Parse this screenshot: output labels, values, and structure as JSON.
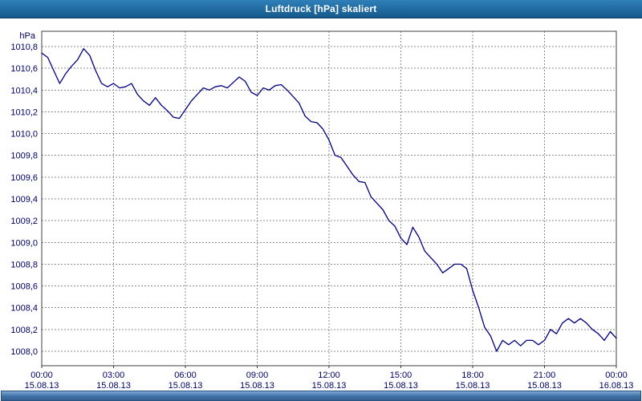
{
  "window": {
    "title": "Luftdruck [hPa] skaliert"
  },
  "chart_data": {
    "type": "line",
    "title": "Luftdruck [hPa] skaliert",
    "ylabel": "hPa",
    "series_name": "Luftdruck",
    "line_color": "#000080",
    "grid": true,
    "legend": "none",
    "ylim": [
      1007.867,
      1010.94
    ],
    "xlim": [
      0,
      24
    ],
    "y_ticks": [
      {
        "value": 1008.0,
        "label": "1008,0"
      },
      {
        "value": 1008.2,
        "label": "1008,2"
      },
      {
        "value": 1008.4,
        "label": "1008,4"
      },
      {
        "value": 1008.6,
        "label": "1008,6"
      },
      {
        "value": 1008.8,
        "label": "1008,8"
      },
      {
        "value": 1009.0,
        "label": "1009,0"
      },
      {
        "value": 1009.2,
        "label": "1009,2"
      },
      {
        "value": 1009.4,
        "label": "1009,4"
      },
      {
        "value": 1009.6,
        "label": "1009,6"
      },
      {
        "value": 1009.8,
        "label": "1009,8"
      },
      {
        "value": 1010.0,
        "label": "1010,0"
      },
      {
        "value": 1010.2,
        "label": "1010,2"
      },
      {
        "value": 1010.4,
        "label": "1010,4"
      },
      {
        "value": 1010.6,
        "label": "1010,6"
      },
      {
        "value": 1010.8,
        "label": "1010,8"
      }
    ],
    "x_ticks": [
      {
        "hour": 0,
        "time": "00:00",
        "date": "15.08.13"
      },
      {
        "hour": 3,
        "time": "03:00",
        "date": "15.08.13"
      },
      {
        "hour": 6,
        "time": "06:00",
        "date": "15.08.13"
      },
      {
        "hour": 9,
        "time": "09:00",
        "date": "15.08.13"
      },
      {
        "hour": 12,
        "time": "12:00",
        "date": "15.08.13"
      },
      {
        "hour": 15,
        "time": "15:00",
        "date": "15.08.13"
      },
      {
        "hour": 18,
        "time": "18:00",
        "date": "15.08.13"
      },
      {
        "hour": 21,
        "time": "21:00",
        "date": "15.08.13"
      },
      {
        "hour": 24,
        "time": "00:00",
        "date": "16.08.13"
      }
    ],
    "x_hours": [
      0,
      0.25,
      0.5,
      0.75,
      1,
      1.25,
      1.5,
      1.75,
      2,
      2.25,
      2.5,
      2.75,
      3,
      3.25,
      3.5,
      3.75,
      4,
      4.25,
      4.5,
      4.75,
      5,
      5.25,
      5.5,
      5.75,
      6,
      6.25,
      6.5,
      6.75,
      7,
      7.25,
      7.5,
      7.75,
      8,
      8.25,
      8.5,
      8.75,
      9,
      9.25,
      9.5,
      9.75,
      10,
      10.25,
      10.5,
      10.75,
      11,
      11.25,
      11.5,
      11.75,
      12,
      12.25,
      12.5,
      12.75,
      13,
      13.25,
      13.5,
      13.75,
      14,
      14.25,
      14.5,
      14.75,
      15,
      15.25,
      15.5,
      15.75,
      16,
      16.25,
      16.5,
      16.75,
      17,
      17.25,
      17.5,
      17.75,
      18,
      18.25,
      18.5,
      18.75,
      19,
      19.25,
      19.5,
      19.75,
      20,
      20.25,
      20.5,
      20.75,
      21,
      21.25,
      21.5,
      21.75,
      22,
      22.25,
      22.5,
      22.75,
      23,
      23.25,
      23.5,
      23.75,
      24
    ],
    "values": [
      1010.74,
      1010.7,
      1010.58,
      1010.46,
      1010.55,
      1010.62,
      1010.68,
      1010.78,
      1010.72,
      1010.58,
      1010.46,
      1010.43,
      1010.46,
      1010.42,
      1010.43,
      1010.46,
      1010.36,
      1010.3,
      1010.26,
      1010.33,
      1010.26,
      1010.21,
      1010.15,
      1010.14,
      1010.22,
      1010.3,
      1010.36,
      1010.42,
      1010.4,
      1010.43,
      1010.44,
      1010.42,
      1010.47,
      1010.52,
      1010.48,
      1010.38,
      1010.35,
      1010.42,
      1010.4,
      1010.44,
      1010.45,
      1010.4,
      1010.34,
      1010.28,
      1010.16,
      1010.11,
      1010.1,
      1010.04,
      1009.94,
      1009.8,
      1009.78,
      1009.7,
      1009.62,
      1009.56,
      1009.55,
      1009.42,
      1009.36,
      1009.3,
      1009.2,
      1009.15,
      1009.04,
      1008.98,
      1009.14,
      1009.05,
      1008.92,
      1008.86,
      1008.8,
      1008.72,
      1008.76,
      1008.8,
      1008.8,
      1008.76,
      1008.56,
      1008.4,
      1008.22,
      1008.14,
      1008.0,
      1008.1,
      1008.06,
      1008.1,
      1008.05,
      1008.1,
      1008.1,
      1008.06,
      1008.1,
      1008.2,
      1008.16,
      1008.26,
      1008.3,
      1008.26,
      1008.3,
      1008.26,
      1008.2,
      1008.16,
      1008.1,
      1008.18,
      1008.12
    ]
  },
  "scrollbar": {
    "orientation": "horizontal"
  }
}
